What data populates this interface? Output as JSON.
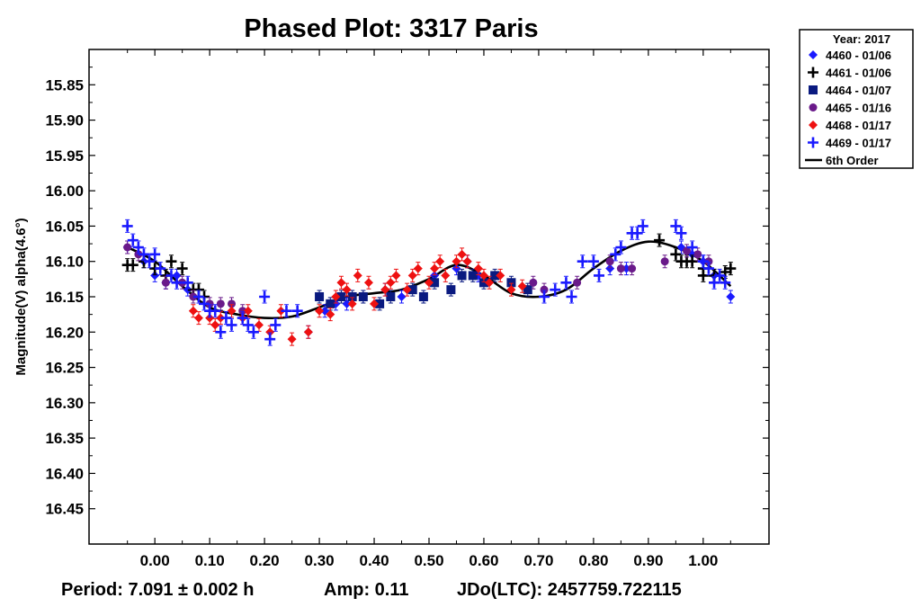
{
  "chart_data": {
    "type": "scatter",
    "title": "Phased Plot: 3317 Paris",
    "xlabel": "",
    "ylabel": "Magnitude(V) alpha(4.6°)",
    "xlim": [
      -0.12,
      1.12
    ],
    "ylim": [
      16.5,
      15.8
    ],
    "y_inverted": true,
    "x_ticks": [
      "0.00",
      "0.10",
      "0.20",
      "0.30",
      "0.40",
      "0.50",
      "0.60",
      "0.70",
      "0.80",
      "0.90",
      "1.00"
    ],
    "y_ticks": [
      "15.85",
      "15.90",
      "15.95",
      "16.00",
      "16.05",
      "16.10",
      "16.15",
      "16.20",
      "16.25",
      "16.30",
      "16.35",
      "16.40",
      "16.45"
    ],
    "legend_title": "Year: 2017",
    "legend_position": "top-right-outside",
    "series": [
      {
        "name": "4460 - 01/06",
        "marker": "diamond",
        "color": "#1a1aff",
        "points": [
          [
            -0.05,
            16.08
          ],
          [
            -0.02,
            16.1
          ],
          [
            0.0,
            16.12
          ],
          [
            0.02,
            16.13
          ],
          [
            0.04,
            16.12
          ],
          [
            0.06,
            16.14
          ],
          [
            0.28,
            16.2
          ],
          [
            0.31,
            16.17
          ],
          [
            0.33,
            16.16
          ],
          [
            0.35,
            16.16
          ],
          [
            0.38,
            16.15
          ],
          [
            0.42,
            16.14
          ],
          [
            0.45,
            16.15
          ],
          [
            0.49,
            16.15
          ],
          [
            0.51,
            16.12
          ],
          [
            0.55,
            16.11
          ],
          [
            0.57,
            16.1
          ],
          [
            0.59,
            16.12
          ],
          [
            0.83,
            16.11
          ],
          [
            0.86,
            16.11
          ],
          [
            0.96,
            16.08
          ],
          [
            0.98,
            16.09
          ],
          [
            1.0,
            16.1
          ],
          [
            1.02,
            16.12
          ],
          [
            1.05,
            16.15
          ]
        ]
      },
      {
        "name": "4461 - 01/06",
        "marker": "plus",
        "color": "#000000",
        "points": [
          [
            -0.05,
            16.105
          ],
          [
            -0.04,
            16.105
          ],
          [
            -0.02,
            16.1
          ],
          [
            0.0,
            16.11
          ],
          [
            0.02,
            16.12
          ],
          [
            0.03,
            16.1
          ],
          [
            0.05,
            16.11
          ],
          [
            0.07,
            16.14
          ],
          [
            0.08,
            16.14
          ],
          [
            0.09,
            16.15
          ],
          [
            0.92,
            16.07
          ],
          [
            0.95,
            16.09
          ],
          [
            0.96,
            16.1
          ],
          [
            0.97,
            16.1
          ],
          [
            0.98,
            16.1
          ],
          [
            1.0,
            16.11
          ],
          [
            1.0,
            16.12
          ],
          [
            1.02,
            16.12
          ],
          [
            1.04,
            16.115
          ],
          [
            1.05,
            16.11
          ]
        ]
      },
      {
        "name": "4464 - 01/07",
        "marker": "square",
        "color": "#0a1a80",
        "points": [
          [
            0.3,
            16.15
          ],
          [
            0.32,
            16.16
          ],
          [
            0.34,
            16.15
          ],
          [
            0.36,
            16.15
          ],
          [
            0.38,
            16.15
          ],
          [
            0.41,
            16.16
          ],
          [
            0.43,
            16.15
          ],
          [
            0.47,
            16.14
          ],
          [
            0.49,
            16.15
          ],
          [
            0.51,
            16.13
          ],
          [
            0.54,
            16.14
          ],
          [
            0.56,
            16.12
          ],
          [
            0.58,
            16.12
          ],
          [
            0.6,
            16.13
          ],
          [
            0.62,
            16.12
          ],
          [
            0.65,
            16.13
          ],
          [
            0.68,
            16.14
          ]
        ]
      },
      {
        "name": "4465 - 01/16",
        "marker": "circle",
        "color": "#6a1a8a",
        "points": [
          [
            -0.05,
            16.08
          ],
          [
            -0.03,
            16.09
          ],
          [
            0.02,
            16.13
          ],
          [
            0.05,
            16.13
          ],
          [
            0.07,
            16.15
          ],
          [
            0.1,
            16.16
          ],
          [
            0.12,
            16.16
          ],
          [
            0.14,
            16.16
          ],
          [
            0.16,
            16.17
          ],
          [
            0.69,
            16.13
          ],
          [
            0.71,
            16.14
          ],
          [
            0.77,
            16.13
          ],
          [
            0.83,
            16.1
          ],
          [
            0.85,
            16.11
          ],
          [
            0.87,
            16.11
          ],
          [
            0.93,
            16.1
          ],
          [
            0.97,
            16.085
          ],
          [
            0.99,
            16.09
          ],
          [
            1.01,
            16.1
          ]
        ]
      },
      {
        "name": "4468 - 01/17",
        "marker": "diamond",
        "color": "#ee1111",
        "points": [
          [
            0.07,
            16.17
          ],
          [
            0.08,
            16.18
          ],
          [
            0.1,
            16.18
          ],
          [
            0.11,
            16.19
          ],
          [
            0.12,
            16.18
          ],
          [
            0.14,
            16.17
          ],
          [
            0.16,
            16.18
          ],
          [
            0.17,
            16.17
          ],
          [
            0.19,
            16.19
          ],
          [
            0.21,
            16.2
          ],
          [
            0.23,
            16.17
          ],
          [
            0.25,
            16.21
          ],
          [
            0.28,
            16.2
          ],
          [
            0.3,
            16.17
          ],
          [
            0.32,
            16.175
          ],
          [
            0.33,
            16.15
          ],
          [
            0.34,
            16.13
          ],
          [
            0.35,
            16.14
          ],
          [
            0.36,
            16.16
          ],
          [
            0.37,
            16.12
          ],
          [
            0.39,
            16.13
          ],
          [
            0.4,
            16.16
          ],
          [
            0.42,
            16.14
          ],
          [
            0.43,
            16.13
          ],
          [
            0.44,
            16.12
          ],
          [
            0.46,
            16.14
          ],
          [
            0.47,
            16.12
          ],
          [
            0.48,
            16.11
          ],
          [
            0.5,
            16.13
          ],
          [
            0.51,
            16.11
          ],
          [
            0.52,
            16.1
          ],
          [
            0.53,
            16.12
          ],
          [
            0.55,
            16.1
          ],
          [
            0.56,
            16.09
          ],
          [
            0.57,
            16.1
          ],
          [
            0.59,
            16.11
          ],
          [
            0.6,
            16.12
          ],
          [
            0.61,
            16.13
          ],
          [
            0.63,
            16.12
          ],
          [
            0.65,
            16.14
          ],
          [
            0.67,
            16.135
          ]
        ]
      },
      {
        "name": "4469 - 01/17",
        "marker": "plus",
        "color": "#1a1aff",
        "points": [
          [
            -0.05,
            16.05
          ],
          [
            -0.04,
            16.07
          ],
          [
            -0.03,
            16.08
          ],
          [
            -0.02,
            16.09
          ],
          [
            -0.01,
            16.1
          ],
          [
            0.0,
            16.09
          ],
          [
            0.01,
            16.11
          ],
          [
            0.03,
            16.12
          ],
          [
            0.04,
            16.13
          ],
          [
            0.06,
            16.13
          ],
          [
            0.08,
            16.15
          ],
          [
            0.09,
            16.16
          ],
          [
            0.1,
            16.17
          ],
          [
            0.11,
            16.17
          ],
          [
            0.12,
            16.2
          ],
          [
            0.13,
            16.18
          ],
          [
            0.14,
            16.19
          ],
          [
            0.16,
            16.18
          ],
          [
            0.17,
            16.19
          ],
          [
            0.18,
            16.2
          ],
          [
            0.2,
            16.15
          ],
          [
            0.21,
            16.21
          ],
          [
            0.22,
            16.19
          ],
          [
            0.24,
            16.17
          ],
          [
            0.26,
            16.17
          ],
          [
            0.71,
            16.15
          ],
          [
            0.73,
            16.14
          ],
          [
            0.75,
            16.13
          ],
          [
            0.76,
            16.15
          ],
          [
            0.78,
            16.1
          ],
          [
            0.8,
            16.1
          ],
          [
            0.81,
            16.12
          ],
          [
            0.84,
            16.09
          ],
          [
            0.85,
            16.08
          ],
          [
            0.87,
            16.06
          ],
          [
            0.88,
            16.06
          ],
          [
            0.89,
            16.05
          ],
          [
            0.95,
            16.05
          ],
          [
            0.96,
            16.06
          ],
          [
            0.98,
            16.08
          ],
          [
            1.0,
            16.1
          ],
          [
            1.01,
            16.11
          ],
          [
            1.02,
            16.13
          ],
          [
            1.03,
            16.12
          ],
          [
            1.04,
            16.13
          ]
        ]
      }
    ],
    "fit": {
      "name": "6th Order",
      "color": "#000000",
      "points": [
        [
          -0.05,
          16.08
        ],
        [
          0.0,
          16.1
        ],
        [
          0.05,
          16.135
        ],
        [
          0.1,
          16.165
        ],
        [
          0.15,
          16.175
        ],
        [
          0.2,
          16.18
        ],
        [
          0.25,
          16.178
        ],
        [
          0.3,
          16.165
        ],
        [
          0.35,
          16.15
        ],
        [
          0.4,
          16.145
        ],
        [
          0.45,
          16.14
        ],
        [
          0.5,
          16.125
        ],
        [
          0.55,
          16.105
        ],
        [
          0.6,
          16.12
        ],
        [
          0.65,
          16.145
        ],
        [
          0.7,
          16.15
        ],
        [
          0.75,
          16.14
        ],
        [
          0.8,
          16.11
        ],
        [
          0.85,
          16.085
        ],
        [
          0.9,
          16.072
        ],
        [
          0.95,
          16.08
        ],
        [
          1.0,
          16.1
        ],
        [
          1.05,
          16.135
        ]
      ]
    }
  },
  "footer": {
    "period": "Period: 7.091 ± 0.002 h",
    "amp": "Amp: 0.11",
    "jdo": "JDo(LTC): 2457759.722115"
  },
  "legend": {
    "title": "Year: 2017",
    "fit_label": "6th Order"
  }
}
